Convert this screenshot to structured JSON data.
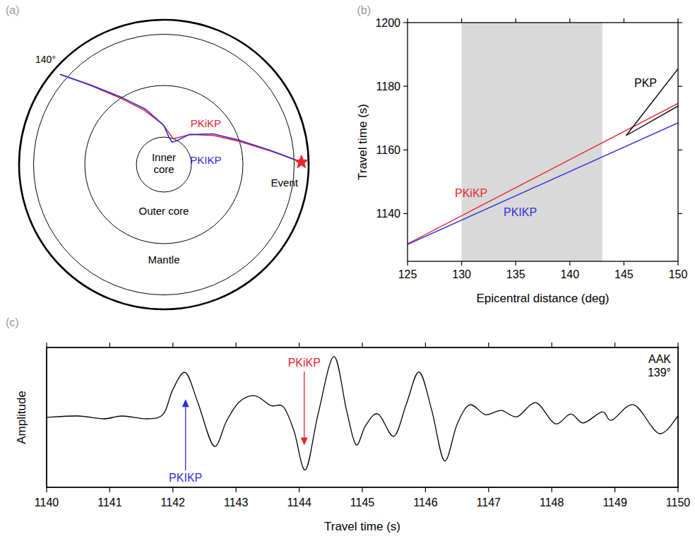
{
  "diagram": {
    "panel_label": "(a)",
    "event_label": "Event",
    "distance_label": "140°",
    "regions": [
      "Inner core",
      "Outer core",
      "Mantle"
    ],
    "rays": [
      {
        "name": "PKiKP",
        "color": "#e8242a"
      },
      {
        "name": "PKIKP",
        "color": "#2d2de0"
      }
    ]
  },
  "chart_data": [
    {
      "type": "line",
      "panel_label": "(b)",
      "x_label": "Epicentral distance (deg)",
      "y_label": "Travel time (s)",
      "xlim": [
        125,
        150
      ],
      "xticks": [
        125,
        130,
        135,
        140,
        145,
        150
      ],
      "ylim": [
        1125,
        1200
      ],
      "yticks": [
        1140,
        1160,
        1180,
        1200
      ],
      "shaded_x": [
        130,
        143
      ],
      "series": [
        {
          "name": "PKiKP",
          "color": "#e8242a",
          "x": [
            125,
            150
          ],
          "values": [
            1130.5,
            1174.6
          ]
        },
        {
          "name": "PKIKP",
          "color": "#2d2de0",
          "x": [
            125,
            150
          ],
          "values": [
            1130.3,
            1168.5
          ]
        },
        {
          "name": "PKP",
          "color": "#000000",
          "x": [
            150,
            145.2,
            150
          ],
          "values": [
            1185.5,
            1164.5,
            1173.8
          ]
        }
      ]
    },
    {
      "type": "line",
      "panel_label": "(c)",
      "x_label": "Travel time (s)",
      "y_label": "Amplitude",
      "xlim": [
        1140,
        1150
      ],
      "xticks": [
        1140,
        1141,
        1142,
        1143,
        1144,
        1145,
        1146,
        1147,
        1148,
        1149,
        1150
      ],
      "ylim": [
        -1,
        1
      ],
      "tick_labels": "x",
      "station": "AAK",
      "distance_label": "139°",
      "series": [
        {
          "color": "#000000",
          "x": [
            1140.0,
            1140.5,
            1140.9,
            1141.2,
            1141.6,
            1141.85,
            1142.0,
            1142.2,
            1142.4,
            1142.65,
            1142.85,
            1143.05,
            1143.3,
            1143.55,
            1143.75,
            1143.92,
            1144.1,
            1144.3,
            1144.55,
            1144.75,
            1144.9,
            1145.05,
            1145.25,
            1145.5,
            1145.7,
            1145.9,
            1146.1,
            1146.3,
            1146.5,
            1146.7,
            1146.95,
            1147.2,
            1147.45,
            1147.75,
            1148.05,
            1148.3,
            1148.5,
            1148.8,
            1148.95,
            1149.3,
            1149.7,
            1150.0
          ],
          "values": [
            0.0,
            0.02,
            -0.02,
            0.02,
            -0.02,
            0.05,
            0.4,
            0.64,
            0.2,
            -0.41,
            -0.05,
            0.22,
            0.31,
            0.17,
            0.15,
            -0.2,
            -0.75,
            0.05,
            0.87,
            0.1,
            -0.39,
            -0.12,
            0.05,
            -0.27,
            0.2,
            0.65,
            0.1,
            -0.62,
            -0.1,
            0.18,
            0.04,
            0.1,
            0.01,
            0.21,
            -0.09,
            0.05,
            -0.08,
            0.08,
            -0.04,
            0.18,
            -0.23,
            0.02
          ]
        }
      ],
      "arrows": [
        {
          "label": "PKIKP",
          "x": 1142.2,
          "color": "#2d2de0",
          "direction": "up"
        },
        {
          "label": "PKiKP",
          "x": 1144.08,
          "color": "#e8242a",
          "direction": "down"
        }
      ]
    }
  ]
}
